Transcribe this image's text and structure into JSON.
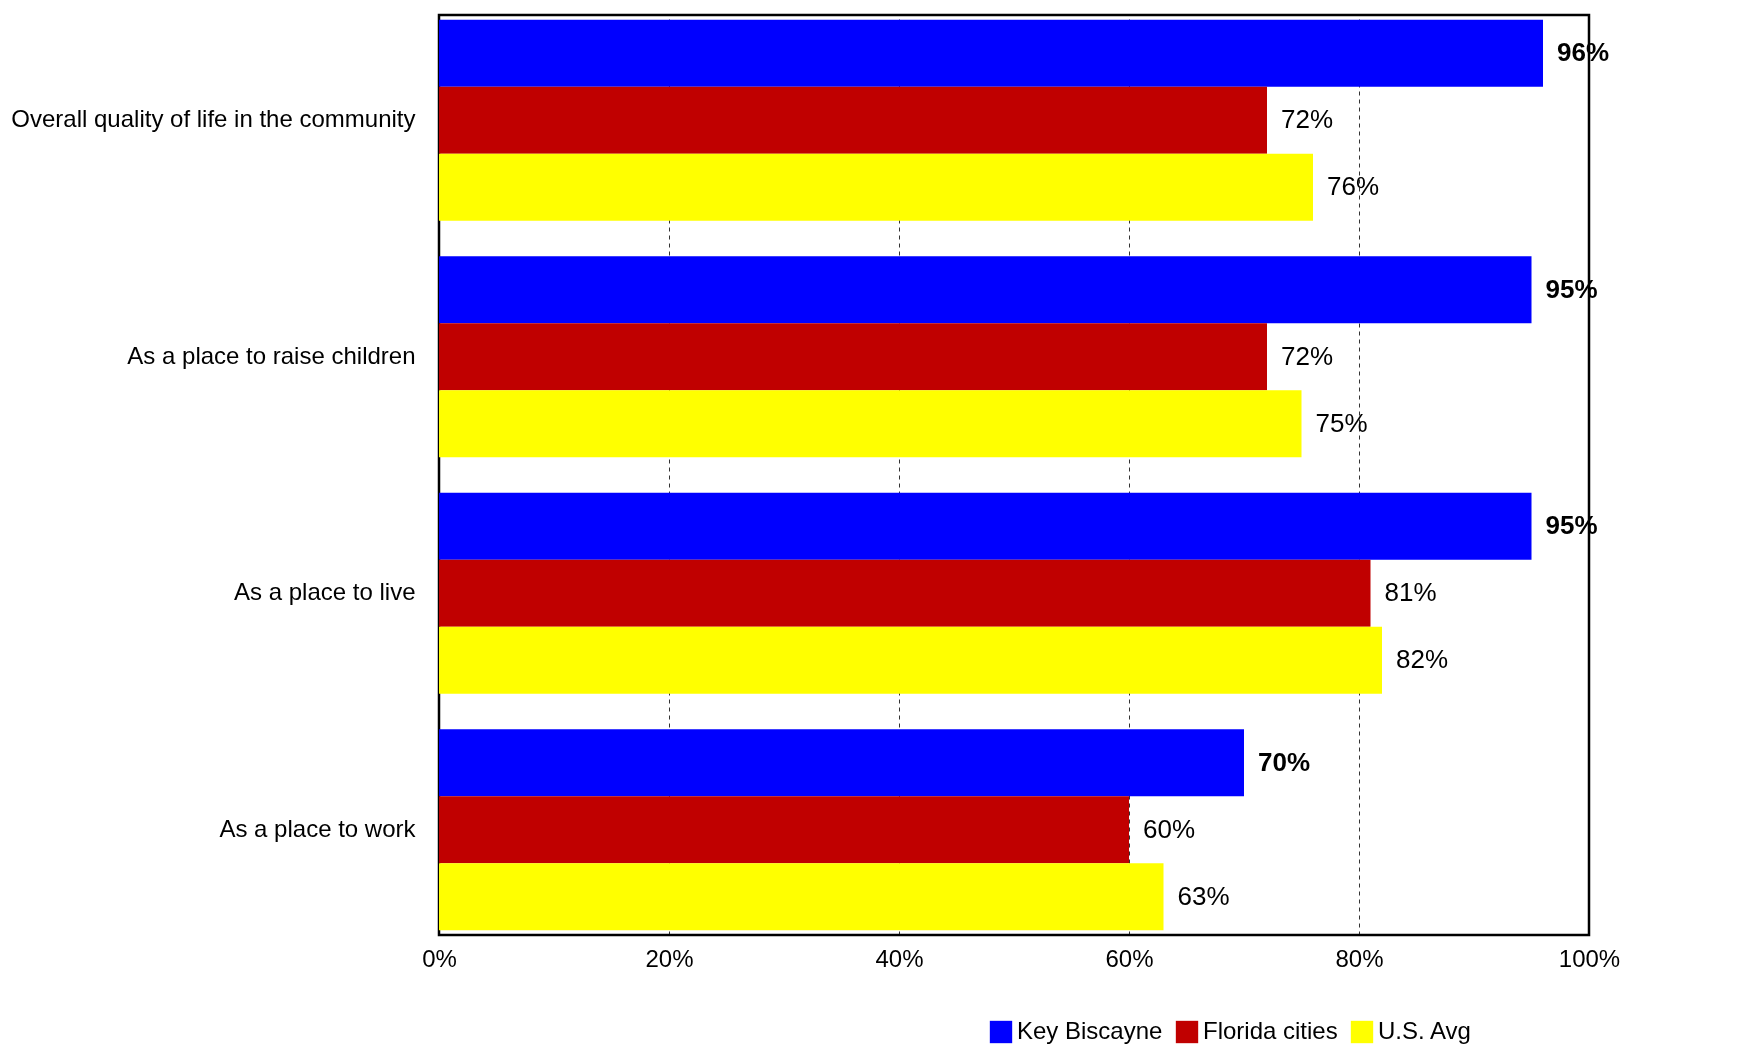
{
  "chart_data": {
    "type": "bar",
    "orientation": "horizontal",
    "categories": [
      "Overall quality of life in the community",
      "As a place to raise children",
      "As a place to live",
      "As a place to work"
    ],
    "series": [
      {
        "name": "Key Biscayne",
        "color": "#0000ff",
        "values": [
          96,
          95,
          95,
          70
        ],
        "value_labels": [
          "96%",
          "95%",
          "95%",
          "70%"
        ]
      },
      {
        "name": "Florida cities",
        "color": "#c00000",
        "values": [
          72,
          72,
          81,
          60
        ],
        "value_labels": [
          "72%",
          "72%",
          "81%",
          "60%"
        ]
      },
      {
        "name": "U.S. Avg",
        "color": "#ffff00",
        "values": [
          76,
          75,
          82,
          63
        ],
        "value_labels": [
          "76%",
          "75%",
          "82%",
          "63%"
        ]
      }
    ],
    "xlim": [
      0,
      100
    ],
    "xticks": [
      {
        "value": 0,
        "label": "0%"
      },
      {
        "value": 20,
        "label": "20%"
      },
      {
        "value": 40,
        "label": "40%"
      },
      {
        "value": 60,
        "label": "60%"
      },
      {
        "value": 80,
        "label": "80%"
      },
      {
        "value": 100,
        "label": "100%"
      }
    ],
    "grid": "x",
    "legend": "bottom right"
  }
}
